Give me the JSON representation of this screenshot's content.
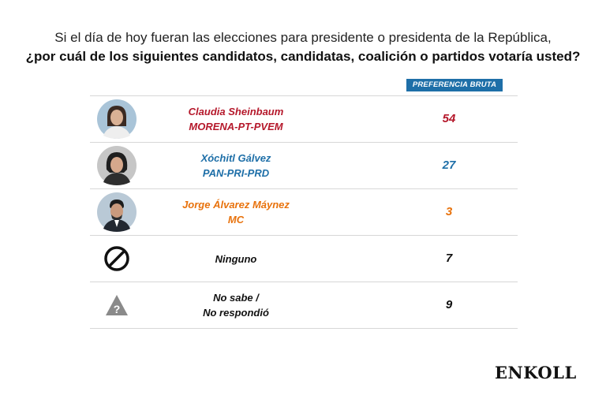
{
  "header": {
    "line1": "Si el día de hoy fueran las elecciones para presidente o presidenta de la República,",
    "line2": "¿por cuál de los siguientes candidatos, candidatas, coalición o partidos votaría usted?"
  },
  "column_header": "PREFERENCIA BRUTA",
  "colors": {
    "morena": "#b5182b",
    "pan": "#1e6fa8",
    "mc": "#e8720c",
    "neutral": "#111111"
  },
  "chart_data": {
    "type": "table",
    "columns": [
      "PREFERENCIA BRUTA"
    ],
    "rows": [
      {
        "line1": "Claudia Sheinbaum",
        "line2": "MORENA-PT-PVEM",
        "value": "54",
        "color": "#b5182b",
        "icon": "candidate-portrait-icon"
      },
      {
        "line1": "Xóchitl Gálvez",
        "line2": "PAN-PRI-PRD",
        "value": "27",
        "color": "#1e6fa8",
        "icon": "candidate-portrait-icon"
      },
      {
        "line1": "Jorge Álvarez Máynez",
        "line2": "MC",
        "value": "3",
        "color": "#e8720c",
        "icon": "candidate-portrait-icon"
      },
      {
        "line1": "Ninguno",
        "line2": "",
        "value": "7",
        "color": "#111111",
        "icon": "prohibited-icon"
      },
      {
        "line1": "No sabe /",
        "line2": "No respondió",
        "value": "9",
        "color": "#111111",
        "icon": "warning-question-icon"
      }
    ]
  },
  "brand": "ENKOLL"
}
